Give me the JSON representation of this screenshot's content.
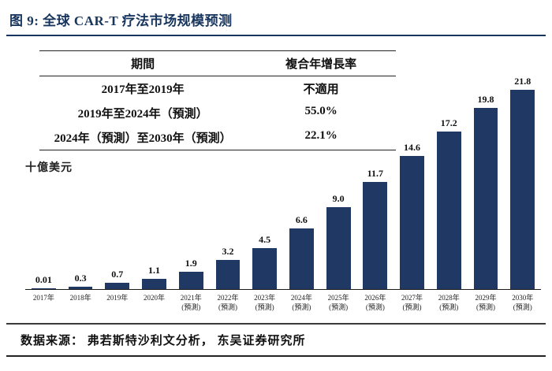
{
  "title": "图 9:  全球 CAR-T 疗法市场规模预测",
  "accent_color": "#17355d",
  "table": {
    "headers": [
      "期間",
      "複合年增長率"
    ],
    "rows": [
      [
        "2017年至2019年",
        "不適用"
      ],
      [
        "2019年至2024年（預測）",
        "55.0%"
      ],
      [
        "2024年（預測）至2030年（預測）",
        "22.1%"
      ]
    ]
  },
  "source": "数据来源：  弗若斯特沙利文分析，  东吴证券研究所",
  "chart_data": {
    "type": "bar",
    "title": "全球 CAR-T 疗法市场规模预测",
    "xlabel": "",
    "ylabel": "十億美元",
    "ylim": [
      0,
      22
    ],
    "grid": false,
    "legend": "none",
    "bar_color": "#203864",
    "categories": [
      [
        "2017年"
      ],
      [
        "2018年"
      ],
      [
        "2019年"
      ],
      [
        "2020年"
      ],
      [
        "2021年",
        "(預測)"
      ],
      [
        "2022年",
        "(預測)"
      ],
      [
        "2023年",
        "(預測)"
      ],
      [
        "2024年",
        "(預測)"
      ],
      [
        "2025年",
        "(預測)"
      ],
      [
        "2026年",
        "(預測)"
      ],
      [
        "2027年",
        "(預測)"
      ],
      [
        "2028年",
        "(預測)"
      ],
      [
        "2029年",
        "(預測)"
      ],
      [
        "2030年",
        "(預測)"
      ]
    ],
    "values": [
      0.01,
      0.3,
      0.7,
      1.1,
      1.9,
      3.2,
      4.5,
      6.6,
      9.0,
      11.7,
      14.6,
      17.2,
      19.8,
      21.8
    ],
    "value_labels": [
      "0.01",
      "0.3",
      "0.7",
      "1.1",
      "1.9",
      "3.2",
      "4.5",
      "6.6",
      "9.0",
      "11.7",
      "14.6",
      "17.2",
      "19.8",
      "21.8"
    ]
  }
}
